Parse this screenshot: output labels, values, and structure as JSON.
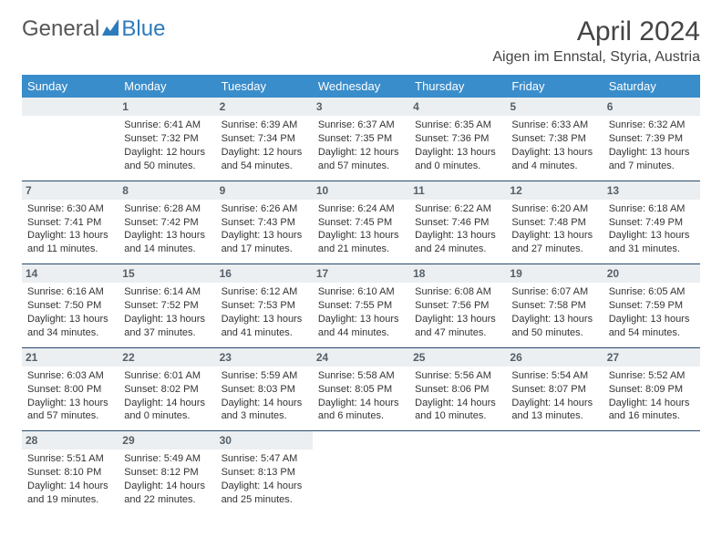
{
  "brand": {
    "part1": "General",
    "part2": "Blue"
  },
  "title": "April 2024",
  "location": "Aigen im Ennstal, Styria, Austria",
  "colors": {
    "header_bg": "#3a8dcb",
    "header_text": "#ffffff",
    "daynum_bg": "#eceff1",
    "daynum_text": "#55606a",
    "week_border": "#264b6c",
    "brand_blue": "#2d7bbd",
    "body_text": "#333333"
  },
  "weekdays": [
    "Sunday",
    "Monday",
    "Tuesday",
    "Wednesday",
    "Thursday",
    "Friday",
    "Saturday"
  ],
  "weeks": [
    [
      null,
      {
        "n": "1",
        "sr": "Sunrise: 6:41 AM",
        "ss": "Sunset: 7:32 PM",
        "dl": "Daylight: 12 hours and 50 minutes."
      },
      {
        "n": "2",
        "sr": "Sunrise: 6:39 AM",
        "ss": "Sunset: 7:34 PM",
        "dl": "Daylight: 12 hours and 54 minutes."
      },
      {
        "n": "3",
        "sr": "Sunrise: 6:37 AM",
        "ss": "Sunset: 7:35 PM",
        "dl": "Daylight: 12 hours and 57 minutes."
      },
      {
        "n": "4",
        "sr": "Sunrise: 6:35 AM",
        "ss": "Sunset: 7:36 PM",
        "dl": "Daylight: 13 hours and 0 minutes."
      },
      {
        "n": "5",
        "sr": "Sunrise: 6:33 AM",
        "ss": "Sunset: 7:38 PM",
        "dl": "Daylight: 13 hours and 4 minutes."
      },
      {
        "n": "6",
        "sr": "Sunrise: 6:32 AM",
        "ss": "Sunset: 7:39 PM",
        "dl": "Daylight: 13 hours and 7 minutes."
      }
    ],
    [
      {
        "n": "7",
        "sr": "Sunrise: 6:30 AM",
        "ss": "Sunset: 7:41 PM",
        "dl": "Daylight: 13 hours and 11 minutes."
      },
      {
        "n": "8",
        "sr": "Sunrise: 6:28 AM",
        "ss": "Sunset: 7:42 PM",
        "dl": "Daylight: 13 hours and 14 minutes."
      },
      {
        "n": "9",
        "sr": "Sunrise: 6:26 AM",
        "ss": "Sunset: 7:43 PM",
        "dl": "Daylight: 13 hours and 17 minutes."
      },
      {
        "n": "10",
        "sr": "Sunrise: 6:24 AM",
        "ss": "Sunset: 7:45 PM",
        "dl": "Daylight: 13 hours and 21 minutes."
      },
      {
        "n": "11",
        "sr": "Sunrise: 6:22 AM",
        "ss": "Sunset: 7:46 PM",
        "dl": "Daylight: 13 hours and 24 minutes."
      },
      {
        "n": "12",
        "sr": "Sunrise: 6:20 AM",
        "ss": "Sunset: 7:48 PM",
        "dl": "Daylight: 13 hours and 27 minutes."
      },
      {
        "n": "13",
        "sr": "Sunrise: 6:18 AM",
        "ss": "Sunset: 7:49 PM",
        "dl": "Daylight: 13 hours and 31 minutes."
      }
    ],
    [
      {
        "n": "14",
        "sr": "Sunrise: 6:16 AM",
        "ss": "Sunset: 7:50 PM",
        "dl": "Daylight: 13 hours and 34 minutes."
      },
      {
        "n": "15",
        "sr": "Sunrise: 6:14 AM",
        "ss": "Sunset: 7:52 PM",
        "dl": "Daylight: 13 hours and 37 minutes."
      },
      {
        "n": "16",
        "sr": "Sunrise: 6:12 AM",
        "ss": "Sunset: 7:53 PM",
        "dl": "Daylight: 13 hours and 41 minutes."
      },
      {
        "n": "17",
        "sr": "Sunrise: 6:10 AM",
        "ss": "Sunset: 7:55 PM",
        "dl": "Daylight: 13 hours and 44 minutes."
      },
      {
        "n": "18",
        "sr": "Sunrise: 6:08 AM",
        "ss": "Sunset: 7:56 PM",
        "dl": "Daylight: 13 hours and 47 minutes."
      },
      {
        "n": "19",
        "sr": "Sunrise: 6:07 AM",
        "ss": "Sunset: 7:58 PM",
        "dl": "Daylight: 13 hours and 50 minutes."
      },
      {
        "n": "20",
        "sr": "Sunrise: 6:05 AM",
        "ss": "Sunset: 7:59 PM",
        "dl": "Daylight: 13 hours and 54 minutes."
      }
    ],
    [
      {
        "n": "21",
        "sr": "Sunrise: 6:03 AM",
        "ss": "Sunset: 8:00 PM",
        "dl": "Daylight: 13 hours and 57 minutes."
      },
      {
        "n": "22",
        "sr": "Sunrise: 6:01 AM",
        "ss": "Sunset: 8:02 PM",
        "dl": "Daylight: 14 hours and 0 minutes."
      },
      {
        "n": "23",
        "sr": "Sunrise: 5:59 AM",
        "ss": "Sunset: 8:03 PM",
        "dl": "Daylight: 14 hours and 3 minutes."
      },
      {
        "n": "24",
        "sr": "Sunrise: 5:58 AM",
        "ss": "Sunset: 8:05 PM",
        "dl": "Daylight: 14 hours and 6 minutes."
      },
      {
        "n": "25",
        "sr": "Sunrise: 5:56 AM",
        "ss": "Sunset: 8:06 PM",
        "dl": "Daylight: 14 hours and 10 minutes."
      },
      {
        "n": "26",
        "sr": "Sunrise: 5:54 AM",
        "ss": "Sunset: 8:07 PM",
        "dl": "Daylight: 14 hours and 13 minutes."
      },
      {
        "n": "27",
        "sr": "Sunrise: 5:52 AM",
        "ss": "Sunset: 8:09 PM",
        "dl": "Daylight: 14 hours and 16 minutes."
      }
    ],
    [
      {
        "n": "28",
        "sr": "Sunrise: 5:51 AM",
        "ss": "Sunset: 8:10 PM",
        "dl": "Daylight: 14 hours and 19 minutes."
      },
      {
        "n": "29",
        "sr": "Sunrise: 5:49 AM",
        "ss": "Sunset: 8:12 PM",
        "dl": "Daylight: 14 hours and 22 minutes."
      },
      {
        "n": "30",
        "sr": "Sunrise: 5:47 AM",
        "ss": "Sunset: 8:13 PM",
        "dl": "Daylight: 14 hours and 25 minutes."
      },
      null,
      null,
      null,
      null
    ]
  ]
}
